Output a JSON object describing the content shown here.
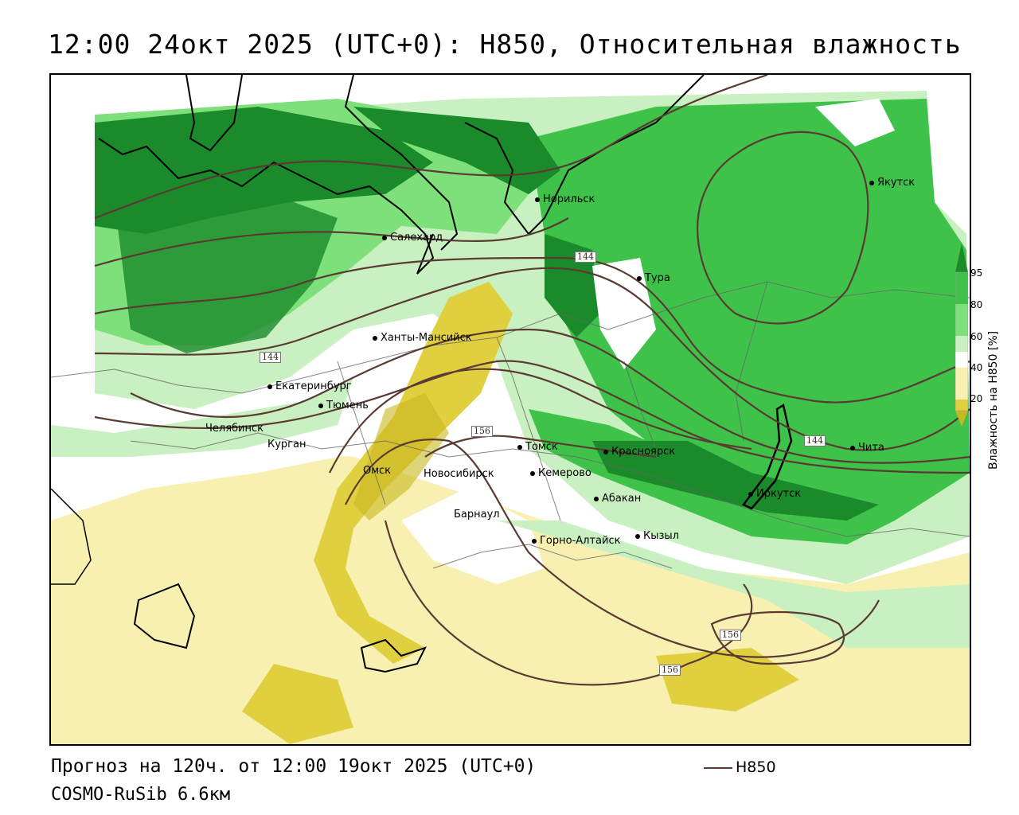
{
  "title": "12:00 24окт 2025 (UTC+0): H850, Относительная влажность",
  "footer": {
    "forecast": "Прогноз на 120ч. от 12:00 19окт 2025 (UTC+0)",
    "model": "COSMO-RuSib 6.6км",
    "contour_legend": "H850",
    "contour_color": "#5a3a33"
  },
  "legend": {
    "title": "Влажность на H850 [%]",
    "ticks": [
      "95",
      "80",
      "60",
      "40",
      "20"
    ],
    "colors": [
      "#1a8a2a",
      "#3ec24a",
      "#7ee07a",
      "#c8f0c0",
      "#ffffff",
      "#f8f0b0",
      "#e0d040",
      "#c8b820"
    ]
  },
  "isolines": {
    "labels": [
      "144",
      "144",
      "156",
      "144",
      "156",
      "156"
    ]
  },
  "cities": [
    {
      "name": "Норильск"
    },
    {
      "name": "Якутск"
    },
    {
      "name": "Салехард"
    },
    {
      "name": "Тура"
    },
    {
      "name": "Ханты-Мансийск"
    },
    {
      "name": "Екатеринбург"
    },
    {
      "name": "Тюмень"
    },
    {
      "name": "Челябинск"
    },
    {
      "name": "Курган"
    },
    {
      "name": "Омск"
    },
    {
      "name": "Новосибирск"
    },
    {
      "name": "Томск"
    },
    {
      "name": "Кемерово"
    },
    {
      "name": "Красноярск"
    },
    {
      "name": "Абакан"
    },
    {
      "name": "Барнаул"
    },
    {
      "name": "Горно-Алтайск"
    },
    {
      "name": "Кызыл"
    },
    {
      "name": "Иркутск"
    },
    {
      "name": "Чита"
    }
  ]
}
